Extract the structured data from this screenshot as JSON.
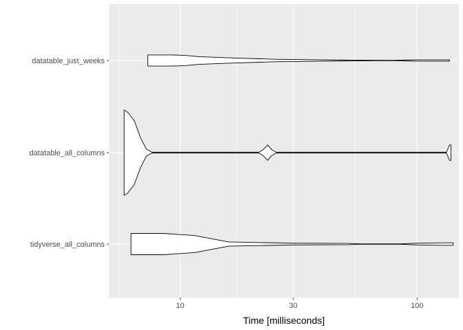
{
  "chart_data": {
    "type": "violin",
    "orientation": "horizontal",
    "xlabel": "Time [milliseconds]",
    "ylabel": "",
    "x_scale": "log10",
    "xlim": [
      5.0,
      150.0
    ],
    "x_ticks": [
      10,
      30,
      100
    ],
    "x_tick_labels": [
      "10",
      "30",
      "100"
    ],
    "x_minor_ticks": [
      5.5,
      17.3,
      54.8
    ],
    "grid": true,
    "legend": "none",
    "colors": {
      "panel": "#ebebeb",
      "grid": "#ffffff",
      "fill": "#ffffff",
      "outline": "#000000"
    },
    "categories": [
      "tidyverse_all_columns",
      "datatable_all_columns",
      "datatable_just_weeks"
    ],
    "series": [
      {
        "category": "tidyverse_all_columns",
        "density": [
          [
            6.2,
            0.25
          ],
          [
            8.5,
            0.25
          ],
          [
            11.5,
            0.2
          ],
          [
            16,
            0.05
          ],
          [
            30,
            0.02
          ],
          [
            51.2,
            0.015
          ],
          [
            58,
            0.005
          ],
          [
            85,
            0.005
          ],
          [
            100,
            0.02
          ],
          [
            130,
            0.03
          ],
          [
            142,
            0.03
          ]
        ]
      },
      {
        "category": "datatable_all_columns",
        "density": [
          [
            5.8,
            1.0
          ],
          [
            6.0,
            0.95
          ],
          [
            6.4,
            0.75
          ],
          [
            6.8,
            0.35
          ],
          [
            7.2,
            0.08
          ],
          [
            7.6,
            0.01
          ],
          [
            21.5,
            0.01
          ],
          [
            22.4,
            0.07
          ],
          [
            23.4,
            0.18
          ],
          [
            24.3,
            0.07
          ],
          [
            25.4,
            0.01
          ],
          [
            133,
            0.01
          ],
          [
            137,
            0.18
          ],
          [
            139,
            0.18
          ]
        ]
      },
      {
        "category": "datatable_just_weeks",
        "density": [
          [
            7.3,
            0.13
          ],
          [
            9.2,
            0.13
          ],
          [
            10.5,
            0.12
          ],
          [
            12,
            0.09
          ],
          [
            16.8,
            0.06
          ],
          [
            25,
            0.03
          ],
          [
            40,
            0.015
          ],
          [
            50,
            0.01
          ],
          [
            78.6,
            0.002
          ],
          [
            88,
            0.01
          ],
          [
            100,
            0.015
          ],
          [
            120,
            0.015
          ],
          [
            137,
            0.015
          ]
        ]
      }
    ]
  }
}
